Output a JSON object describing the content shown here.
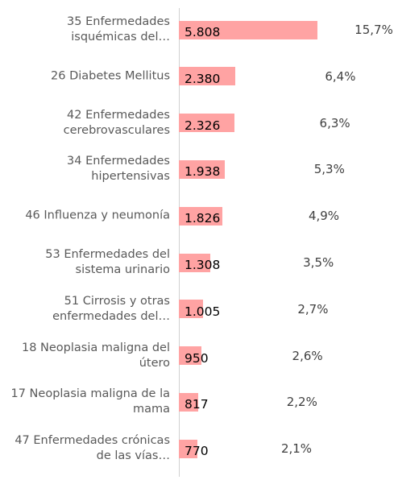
{
  "chart_data": {
    "type": "bar",
    "orientation": "horizontal",
    "categories": [
      "35 Enfermedades isquémicas del…",
      "26 Diabetes Mellitus",
      "42 Enfermedades cerebrovasculares",
      "34 Enfermedades hipertensivas",
      "46 Influenza y neumonía",
      "53 Enfermedades del sistema urinario",
      "51 Cirrosis y otras enfermedades del…",
      "18 Neoplasia maligna del útero",
      "17 Neoplasia maligna de la mama",
      "47 Enfermedades crónicas de las vías…"
    ],
    "values": [
      5808,
      2380,
      2326,
      1938,
      1826,
      1308,
      1005,
      950,
      817,
      770
    ],
    "value_labels": [
      "5.808",
      "2.380",
      "2.326",
      "1.938",
      "1.826",
      "1.308",
      "1.005",
      "950",
      "817",
      "770"
    ],
    "shares": [
      15.7,
      6.4,
      6.3,
      5.3,
      4.9,
      3.5,
      2.7,
      2.6,
      2.2,
      2.1
    ],
    "share_labels": [
      "15,7%",
      "6,4%",
      "6,3%",
      "5,3%",
      "4,9%",
      "3,5%",
      "2,7%",
      "2,6%",
      "2,2%",
      "2,1%"
    ],
    "color": "#ffa3a3"
  }
}
